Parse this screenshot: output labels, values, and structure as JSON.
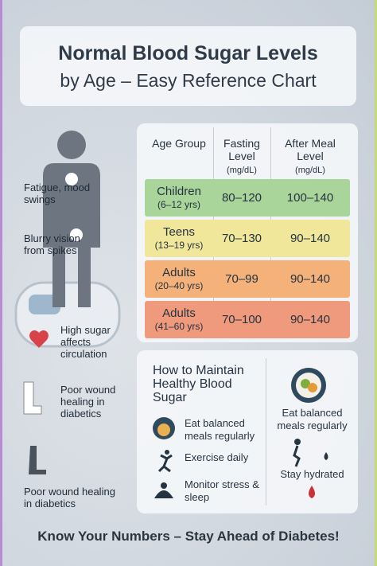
{
  "header": {
    "title_line1": "Normal Blood Sugar Levels",
    "title_line2": "by Age – Easy Reference Chart"
  },
  "symptoms": [
    "Fatigue, mood swings",
    "Blurry vision from spikes",
    "High sugar affects circulation",
    "Poor wound healing in diabetics",
    "Poor wound healing in diabetics"
  ],
  "table": {
    "headers": [
      {
        "title": "Age Group"
      },
      {
        "title": "Fasting Level",
        "unit": "(mg/dL)"
      },
      {
        "title": "After Meal Level",
        "unit": "(mg/dL)"
      }
    ],
    "rows": [
      {
        "group": "Children",
        "ages": "(6–12 yrs)",
        "fasting": "80–120",
        "after": "100–140"
      },
      {
        "group": "Teens",
        "ages": "(13–19 yrs)",
        "fasting": "70–130",
        "after": "90–140"
      },
      {
        "group": "Adults",
        "ages": "(20–40 yrs)",
        "fasting": "70–99",
        "after": "90–140"
      },
      {
        "group": "Adults",
        "ages": "(41–60 yrs)",
        "fasting": "70–100",
        "after": "90–140"
      }
    ]
  },
  "tips": {
    "title": "How to Maintain Healthy Blood Sugar",
    "items": [
      "Eat balanced meals regularly",
      "Exercise daily",
      "Monitor stress & sleep"
    ],
    "side": [
      "Eat balanced meals regularly",
      "Stay hydrated"
    ]
  },
  "footer": "Know Your Numbers – Stay Ahead of Diabetes!"
}
